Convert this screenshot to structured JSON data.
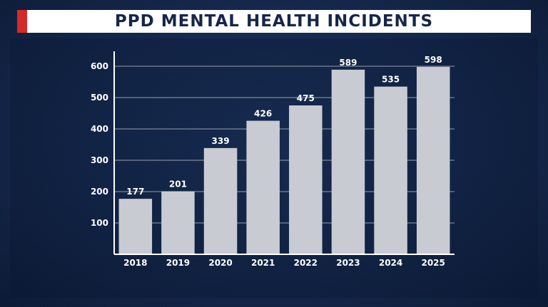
{
  "title": "PPD MENTAL HEALTH INCIDENTS",
  "colors": {
    "background": "#15284c",
    "bar": "#c9cbd3",
    "title_bg": "#ffffff",
    "title_text": "#16264a",
    "accent": "#d42a2a"
  },
  "chart_data": {
    "type": "bar",
    "title": "PPD MENTAL HEALTH INCIDENTS",
    "categories": [
      "2018",
      "2019",
      "2020",
      "2021",
      "2022",
      "2023",
      "2024",
      "2025"
    ],
    "values": [
      177,
      201,
      339,
      426,
      475,
      589,
      535,
      598
    ],
    "yticks": [
      100,
      200,
      300,
      400,
      500,
      600
    ],
    "ylim": [
      0,
      640
    ],
    "xlabel": "",
    "ylabel": "",
    "grid": true,
    "data_labels": true,
    "legend": "none"
  }
}
